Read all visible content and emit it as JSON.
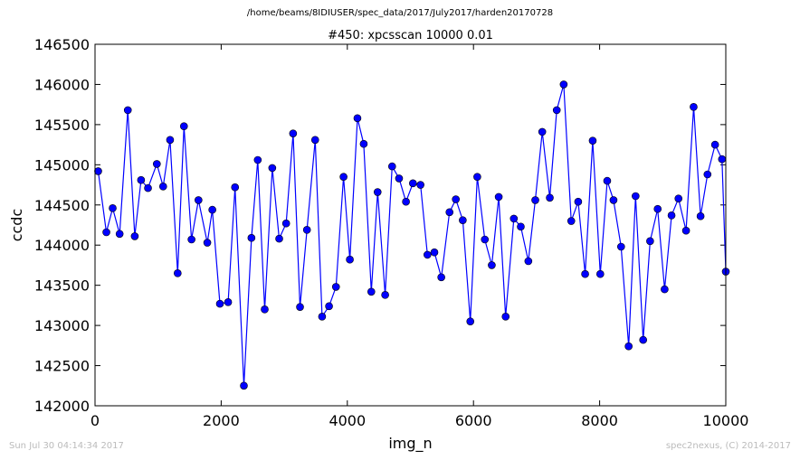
{
  "header": {
    "path": "/home/beams/8IDIUSER/spec_data/2017/July2017/harden20170728"
  },
  "footer": {
    "timestamp": "Sun Jul 30 04:14:34 2017",
    "credit": "spec2nexus, (C) 2014-2017"
  },
  "chart_data": {
    "type": "line",
    "title": "#450: xpcsscan 10000 0.01",
    "xlabel": "img_n",
    "ylabel": "ccdc",
    "xlim": [
      0,
      10000
    ],
    "ylim": [
      142000,
      146500
    ],
    "xticks": [
      0,
      2000,
      4000,
      6000,
      8000,
      10000
    ],
    "yticks": [
      142000,
      142500,
      143000,
      143500,
      144000,
      144500,
      145000,
      145500,
      146000,
      146500
    ],
    "line_color": "#0000ff",
    "marker": "circle",
    "series": [
      {
        "x": [
          50,
          180,
          280,
          390,
          520,
          630,
          730,
          840,
          980,
          1080,
          1190,
          1310,
          1410,
          1530,
          1640,
          1780,
          1860,
          1980,
          2110,
          2220,
          2360,
          2480,
          2580,
          2690,
          2810,
          2920,
          3030,
          3140,
          3250,
          3360,
          3490,
          3600,
          3710,
          3820,
          3940,
          4040,
          4160,
          4260,
          4380,
          4480,
          4600,
          4710,
          4820,
          4930,
          5040,
          5160,
          5270,
          5380,
          5490,
          5620,
          5720,
          5830,
          5950,
          6060,
          6180,
          6290,
          6400,
          6510,
          6640,
          6750,
          6870,
          6980,
          7090,
          7210,
          7320,
          7430,
          7550,
          7660,
          7770,
          7890,
          8010,
          8120,
          8220,
          8340,
          8460,
          8570,
          8690,
          8800,
          8920,
          9030,
          9140,
          9250,
          9370,
          9490,
          9600,
          9710,
          9830,
          9940,
          10000
        ],
        "y": [
          144920,
          144160,
          144460,
          144140,
          145680,
          144110,
          144810,
          144710,
          145010,
          144730,
          145310,
          143650,
          145480,
          144070,
          144560,
          144030,
          144440,
          143270,
          143290,
          144720,
          142250,
          144090,
          145060,
          143200,
          144960,
          144080,
          144270,
          145390,
          143230,
          144190,
          145310,
          143110,
          143240,
          143480,
          144850,
          143820,
          145580,
          145260,
          143420,
          144660,
          143380,
          144980,
          144830,
          144540,
          144770,
          144750,
          143880,
          143910,
          143600,
          144410,
          144570,
          144310,
          143050,
          144850,
          144070,
          143750,
          144600,
          143110,
          144330,
          144230,
          143800,
          144560,
          145410,
          144590,
          145680,
          146000,
          144300,
          144540,
          143640,
          145300,
          143640,
          144800,
          144560,
          143980,
          142740,
          144610,
          142820,
          144050,
          144450,
          143450,
          144370,
          144580,
          144180,
          145720,
          144360,
          144880,
          145250,
          145070,
          143670
        ]
      }
    ]
  }
}
